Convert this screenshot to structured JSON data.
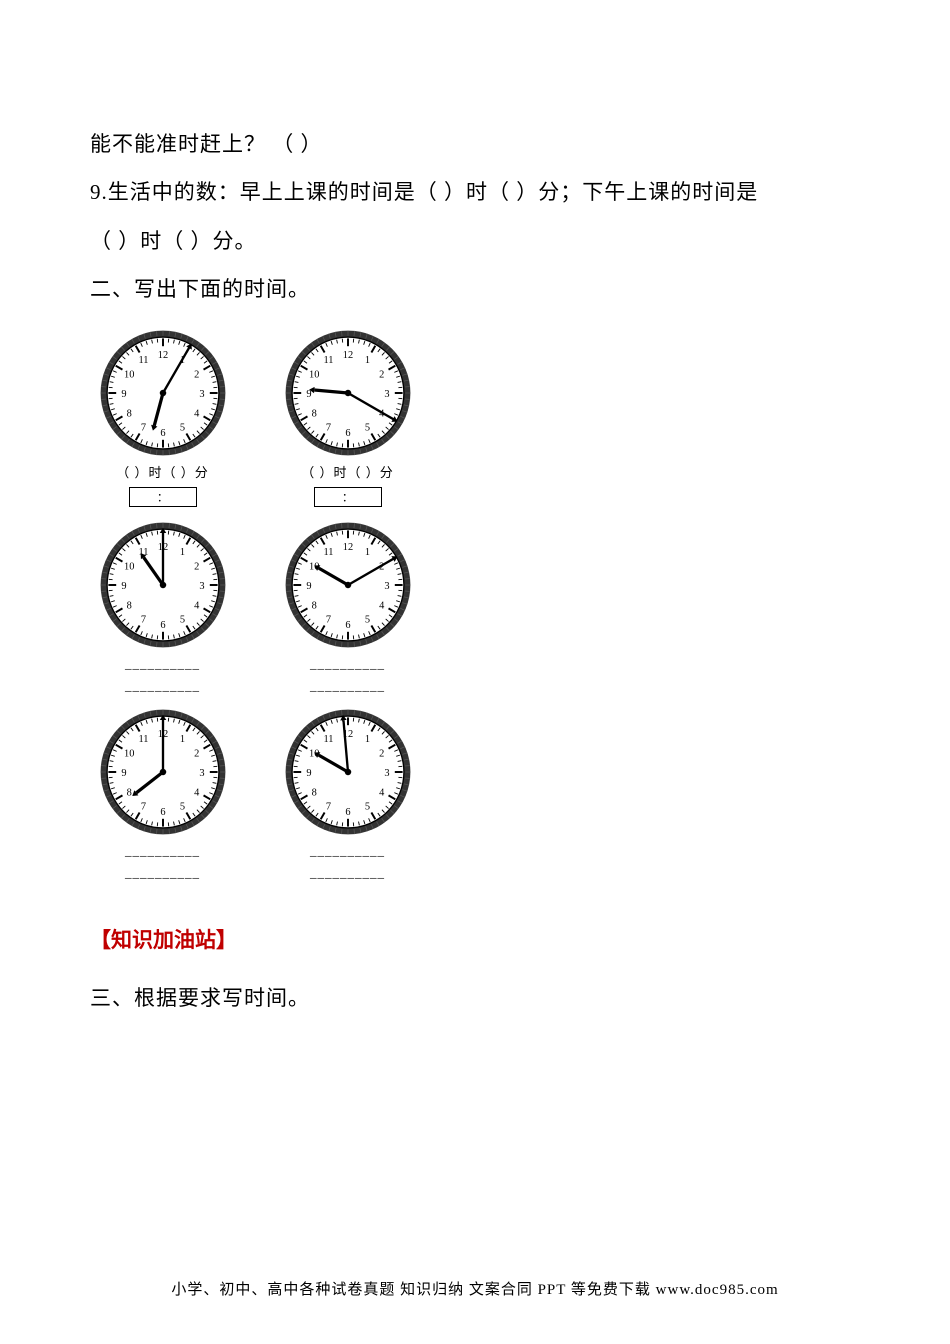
{
  "lines": {
    "l1": "能不能准时赶上？  （       ）",
    "l2": "9.生活中的数：早上上课的时间是（     ）时（     ）分；下午上课的时间是",
    "l3": "（     ）时（     ）分。",
    "l4": "二、写出下面的时间。"
  },
  "clocks": {
    "row1": [
      {
        "hour_angle": 195,
        "minute_angle": 30,
        "label": "（   ）时（   ）分",
        "box": "："
      },
      {
        "hour_angle": 275,
        "minute_angle": 120,
        "label": "（   ）时（   ）分",
        "box": "："
      }
    ],
    "row2": [
      {
        "hour_angle": 325,
        "minute_angle": 0,
        "line1": "__________",
        "line2": "__________"
      },
      {
        "hour_angle": 300,
        "minute_angle": 60,
        "line1": "__________",
        "line2": "__________"
      }
    ],
    "row3": [
      {
        "hour_angle": 232,
        "minute_angle": 0,
        "line1": "__________",
        "line2": "__________"
      },
      {
        "hour_angle": 300,
        "minute_angle": 355,
        "line1": "__________",
        "line2": "__________"
      }
    ]
  },
  "clock_style": {
    "outer_stroke": "#000000",
    "ring_fill": "#333333",
    "face_fill": "#ffffff",
    "tick_stroke": "#000000",
    "number_fontsize": 8,
    "hour_hand_len": 26,
    "minute_hand_len": 40,
    "hand_stroke": "#000000"
  },
  "knowledge_title": "【知识加油站】",
  "section3": "三、根据要求写时间。",
  "footer": "小学、初中、高中各种试卷真题  知识归纳  文案合同  PPT 等免费下载    www.doc985.com"
}
